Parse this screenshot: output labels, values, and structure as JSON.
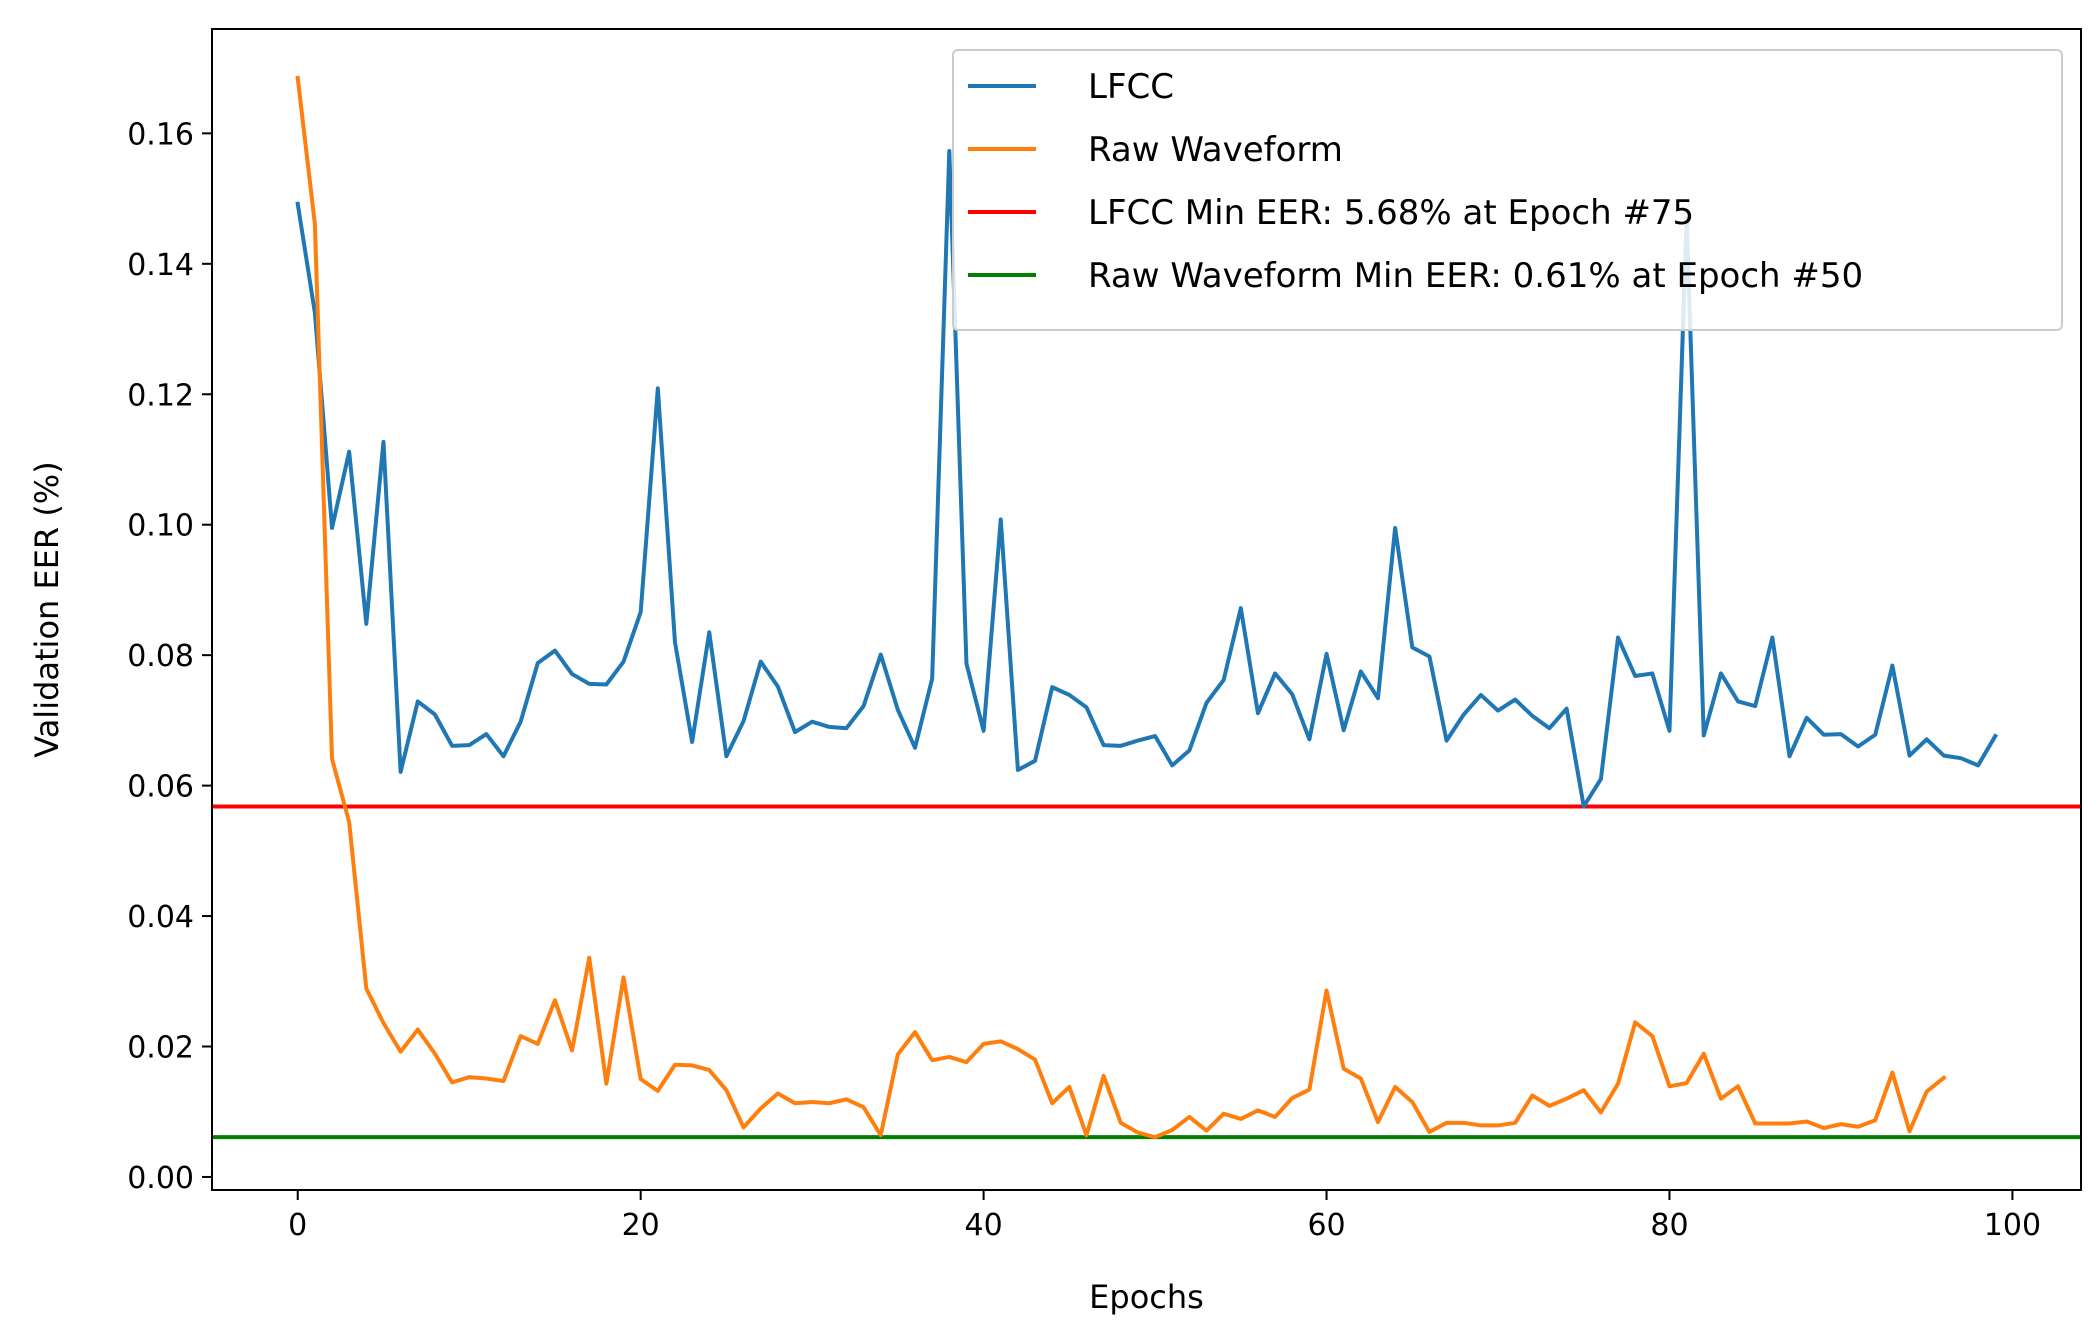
{
  "chart_data": {
    "type": "line",
    "title": "",
    "xlabel": "Epochs",
    "ylabel": "Validation EER (%)",
    "xlim": [
      -5,
      104
    ],
    "ylim": [
      -0.002,
      0.176
    ],
    "xticks": [
      0,
      20,
      40,
      60,
      80,
      100
    ],
    "yticks": [
      0.0,
      0.02,
      0.04,
      0.06,
      0.08,
      0.1,
      0.12,
      0.14,
      0.16
    ],
    "grid": false,
    "legend_position": "top-right",
    "series": [
      {
        "name": "LFCC",
        "color": "#1f77b4",
        "values": [
          0.1492,
          0.1325,
          0.0995,
          0.1112,
          0.0848,
          0.1127,
          0.0621,
          0.0729,
          0.0709,
          0.0661,
          0.0662,
          0.0679,
          0.0645,
          0.0698,
          0.0788,
          0.0807,
          0.0771,
          0.0756,
          0.0755,
          0.079,
          0.0866,
          0.1209,
          0.082,
          0.0667,
          0.0835,
          0.0645,
          0.0699,
          0.079,
          0.0752,
          0.0682,
          0.0698,
          0.069,
          0.0688,
          0.0722,
          0.0801,
          0.0716,
          0.0658,
          0.0764,
          0.1573,
          0.0787,
          0.0684,
          0.1008,
          0.0624,
          0.0638,
          0.0751,
          0.0739,
          0.072,
          0.0662,
          0.0661,
          0.0669,
          0.0676,
          0.0631,
          0.0654,
          0.0727,
          0.0762,
          0.0872,
          0.0711,
          0.0772,
          0.074,
          0.0671,
          0.0802,
          0.0685,
          0.0775,
          0.0734,
          0.0995,
          0.0812,
          0.0798,
          0.0669,
          0.0709,
          0.0739,
          0.0715,
          0.0732,
          0.0707,
          0.0688,
          0.0718,
          0.0568,
          0.061,
          0.0827,
          0.0768,
          0.0772,
          0.0684,
          0.147,
          0.0677,
          0.0772,
          0.0729,
          0.0722,
          0.0827,
          0.0645,
          0.0704,
          0.0678,
          0.0679,
          0.066,
          0.0678,
          0.0784,
          0.0646,
          0.0671,
          0.0646,
          0.0642,
          0.0631,
          0.0676
        ]
      },
      {
        "name": "Raw Waveform",
        "color": "#ff7f0e",
        "values": [
          0.1685,
          0.1461,
          0.0641,
          0.0544,
          0.0289,
          0.0236,
          0.0192,
          0.0226,
          0.0189,
          0.0145,
          0.0153,
          0.0151,
          0.0147,
          0.0216,
          0.0204,
          0.0271,
          0.0194,
          0.0336,
          0.0143,
          0.0306,
          0.015,
          0.0132,
          0.0172,
          0.0171,
          0.0164,
          0.0133,
          0.0076,
          0.0105,
          0.0128,
          0.0113,
          0.0115,
          0.0113,
          0.0119,
          0.0107,
          0.0064,
          0.0188,
          0.0222,
          0.0179,
          0.0184,
          0.0176,
          0.0204,
          0.0208,
          0.0196,
          0.018,
          0.0113,
          0.0138,
          0.0064,
          0.0155,
          0.0083,
          0.0068,
          0.0061,
          0.0072,
          0.0092,
          0.0071,
          0.0097,
          0.0089,
          0.0102,
          0.0092,
          0.0121,
          0.0134,
          0.0286,
          0.0166,
          0.0151,
          0.0084,
          0.0138,
          0.0115,
          0.0069,
          0.0083,
          0.0083,
          0.0079,
          0.0079,
          0.0083,
          0.0125,
          0.0109,
          0.012,
          0.0133,
          0.0099,
          0.0143,
          0.0237,
          0.0216,
          0.0139,
          0.0144,
          0.0189,
          0.012,
          0.0139,
          0.0082,
          0.0082,
          0.0082,
          0.0085,
          0.0075,
          0.0081,
          0.0077,
          0.0087,
          0.016,
          0.007,
          0.0131,
          0.0152
        ]
      }
    ],
    "reference_lines": [
      {
        "name": "LFCC Min EER: 5.68% at Epoch #75",
        "y": 0.0568,
        "color": "#ff0000"
      },
      {
        "name": "Raw Waveform Min EER: 0.61% at Epoch #50",
        "y": 0.0061,
        "color": "#008000"
      }
    ]
  }
}
